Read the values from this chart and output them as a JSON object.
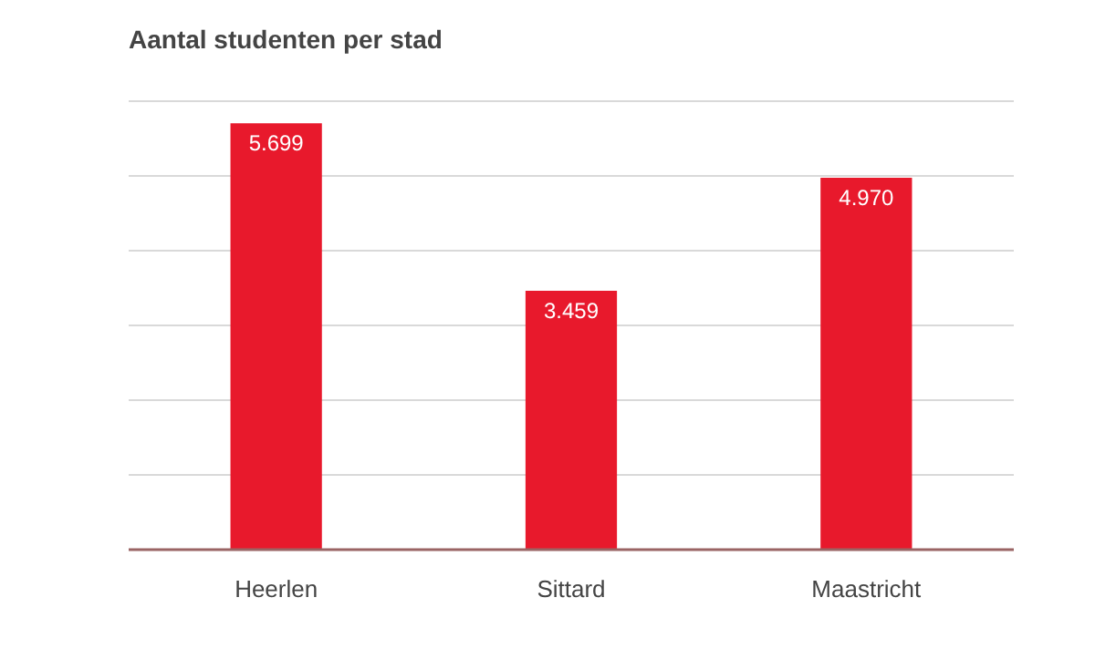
{
  "chart_data": {
    "type": "bar",
    "title": "Aantal studenten per stad",
    "categories": [
      "Heerlen",
      "Sittard",
      "Maastricht"
    ],
    "values": [
      5699,
      3459,
      4970
    ],
    "value_labels": [
      "5.699",
      "3.459",
      "4.970"
    ],
    "color": "#e8192c",
    "yticks": [
      {
        "value": 0,
        "label": null
      },
      {
        "value": 1000,
        "label": null
      },
      {
        "value": 2000,
        "label": null
      },
      {
        "value": 3000,
        "label": null
      },
      {
        "value": 4000,
        "label": null
      },
      {
        "value": 5000,
        "label": null
      },
      {
        "value": 6000,
        "label": null
      }
    ],
    "tick_labels": "x",
    "grid": "y"
  }
}
